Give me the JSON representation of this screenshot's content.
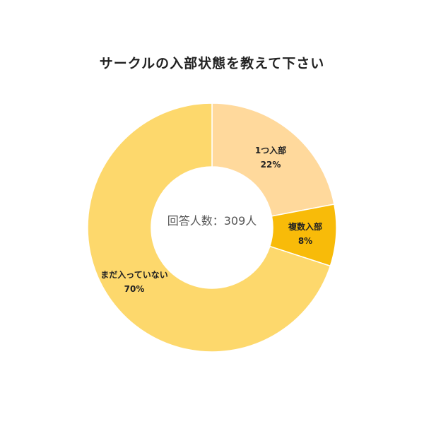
{
  "chart_data": {
    "type": "pie",
    "title": "サークルの入部状態を教えて下さい",
    "center_label": "回答人数：309人",
    "slices": [
      {
        "label": "1つ入部",
        "percent_label": "22%",
        "value": 22,
        "color": "#FFD99C"
      },
      {
        "label": "複数入部",
        "percent_label": "8%",
        "value": 8,
        "color": "#F8BB09"
      },
      {
        "label": "まだ入っていない",
        "percent_label": "70%",
        "value": 70,
        "color": "#FDD86C"
      }
    ]
  }
}
